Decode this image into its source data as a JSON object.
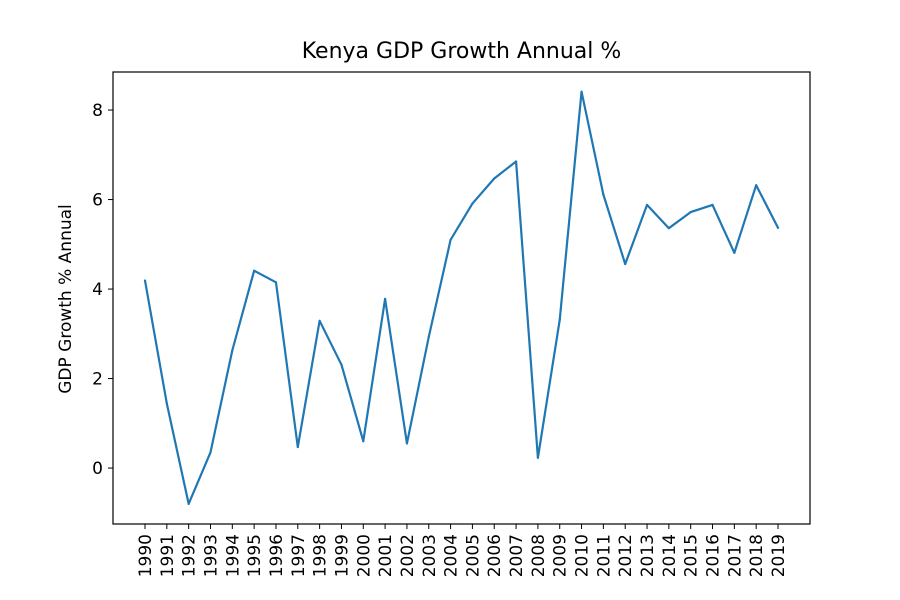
{
  "chart_data": {
    "type": "line",
    "title": "Kenya GDP Growth Annual %",
    "xlabel": "",
    "ylabel": "GDP Growth % Annual",
    "categories": [
      "1990",
      "1991",
      "1992",
      "1993",
      "1994",
      "1995",
      "1996",
      "1997",
      "1998",
      "1999",
      "2000",
      "2001",
      "2002",
      "2003",
      "2004",
      "2005",
      "2006",
      "2007",
      "2008",
      "2009",
      "2010",
      "2011",
      "2012",
      "2013",
      "2014",
      "2015",
      "2016",
      "2017",
      "2018",
      "2019"
    ],
    "series": [
      {
        "values": [
          4.19,
          1.44,
          -0.8,
          0.35,
          2.63,
          4.41,
          4.15,
          0.47,
          3.29,
          2.31,
          0.6,
          3.78,
          0.55,
          2.93,
          5.1,
          5.91,
          6.47,
          6.85,
          0.23,
          3.31,
          8.41,
          6.11,
          4.56,
          5.88,
          5.36,
          5.72,
          5.88,
          4.81,
          6.32,
          5.37
        ],
        "color": "#1f77b4"
      }
    ],
    "ylim": [
      -1.25,
      8.85
    ],
    "yticks": [
      0,
      2,
      4,
      6,
      8
    ],
    "grid": false,
    "legend": "none"
  }
}
